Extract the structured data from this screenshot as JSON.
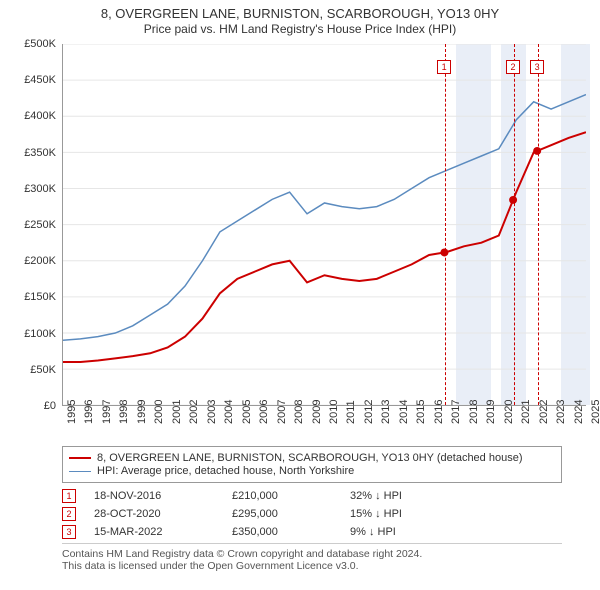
{
  "title": "8, OVERGREEN LANE, BURNISTON, SCARBOROUGH, YO13 0HY",
  "subtitle": "Price paid vs. HM Land Registry's House Price Index (HPI)",
  "chart": {
    "type": "line",
    "x_years": [
      1995,
      1996,
      1997,
      1998,
      1999,
      2000,
      2001,
      2002,
      2003,
      2004,
      2005,
      2006,
      2007,
      2008,
      2009,
      2010,
      2011,
      2012,
      2013,
      2014,
      2015,
      2016,
      2017,
      2018,
      2019,
      2020,
      2021,
      2022,
      2023,
      2024,
      2025
    ],
    "ylim": [
      0,
      500000
    ],
    "ytick_step": 50000,
    "ytick_labels": [
      "£0",
      "£50K",
      "£100K",
      "£150K",
      "£200K",
      "£250K",
      "£300K",
      "£350K",
      "£400K",
      "£450K",
      "£500K"
    ],
    "grid_color": "#e6e6e6",
    "series": [
      {
        "name": "8, OVERGREEN LANE, BURNISTON, SCARBOROUGH, YO13 0HY (detached house)",
        "color": "#cc0000",
        "width": 2,
        "y": [
          60000,
          60000,
          62000,
          65000,
          68000,
          72000,
          80000,
          95000,
          120000,
          155000,
          175000,
          185000,
          195000,
          200000,
          170000,
          180000,
          175000,
          172000,
          175000,
          185000,
          195000,
          208000,
          212000,
          220000,
          225000,
          235000,
          295000,
          350000,
          360000,
          370000,
          378000
        ]
      },
      {
        "name": "HPI: Average price, detached house, North Yorkshire",
        "color": "#5b8bbf",
        "width": 1.5,
        "y": [
          90000,
          92000,
          95000,
          100000,
          110000,
          125000,
          140000,
          165000,
          200000,
          240000,
          255000,
          270000,
          285000,
          295000,
          265000,
          280000,
          275000,
          272000,
          275000,
          285000,
          300000,
          315000,
          325000,
          335000,
          345000,
          355000,
          395000,
          420000,
          410000,
          420000,
          430000
        ]
      }
    ],
    "events": [
      {
        "n": "1",
        "year": 2016.88,
        "date": "18-NOV-2016",
        "price": "£210,000",
        "delta": "32% ↓ HPI"
      },
      {
        "n": "2",
        "year": 2020.82,
        "date": "28-OCT-2020",
        "price": "£295,000",
        "delta": "15% ↓ HPI"
      },
      {
        "n": "3",
        "year": 2022.2,
        "date": "15-MAR-2022",
        "price": "£350,000",
        "delta": "9% ↓ HPI"
      }
    ],
    "shades": [
      {
        "from": 2017.5,
        "to": 2019.5,
        "color": "#e9eef7"
      },
      {
        "from": 2020.1,
        "to": 2021.5,
        "color": "#e9eef7"
      },
      {
        "from": 2023.5,
        "to": 2025.2,
        "color": "#e9eef7"
      }
    ]
  },
  "footer": {
    "l1": "Contains HM Land Registry data © Crown copyright and database right 2024.",
    "l2": "This data is licensed under the Open Government Licence v3.0."
  }
}
